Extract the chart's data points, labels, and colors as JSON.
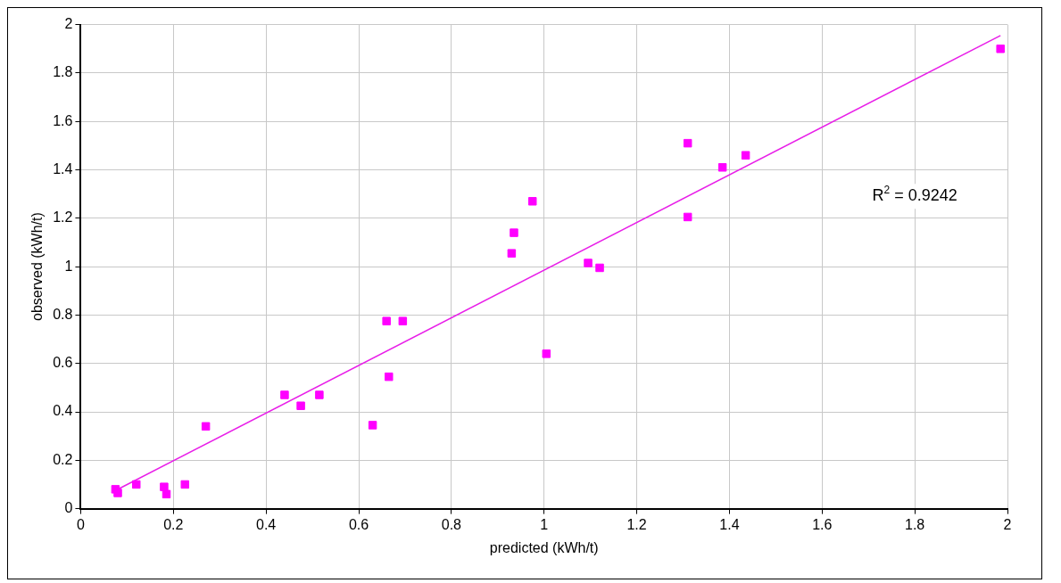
{
  "chart_data": {
    "type": "scatter",
    "xlabel": "predicted (kWh/t)",
    "ylabel": "observed (kWh/t)",
    "xlim": [
      0,
      2
    ],
    "xticks": [
      0,
      0.2,
      0.4,
      0.6,
      0.8,
      1,
      1.2,
      1.4,
      1.6,
      1.8,
      2
    ],
    "ylim": [
      0,
      2
    ],
    "yticks": [
      0,
      0.2,
      0.4,
      0.6,
      0.8,
      1,
      1.2,
      1.4,
      1.6,
      1.8,
      2
    ],
    "grid": true,
    "legend": false,
    "marker": "square",
    "annotations": [
      "R$^{2}$ = 0.9242"
    ],
    "series": [
      {
        "type": "scatter",
        "color": "#ff00ff",
        "x": [
          0.075,
          0.08,
          0.12,
          0.18,
          0.185,
          0.225,
          0.27,
          0.44,
          0.475,
          0.515,
          0.63,
          0.66,
          0.665,
          0.695,
          0.93,
          0.935,
          0.975,
          1.005,
          1.095,
          1.12,
          1.31,
          1.31,
          1.385,
          1.435,
          1.985
        ],
        "values": [
          0.08,
          0.065,
          0.1,
          0.09,
          0.06,
          0.1,
          0.34,
          0.47,
          0.425,
          0.47,
          0.345,
          0.775,
          0.545,
          0.775,
          1.055,
          1.14,
          1.27,
          0.64,
          1.015,
          0.995,
          1.51,
          1.205,
          1.41,
          1.46,
          1.9
        ]
      },
      {
        "type": "line",
        "color": "#e81ee8",
        "marker": "none",
        "x": [
          0.075,
          1.985
        ],
        "values": [
          0.075,
          1.955
        ]
      }
    ]
  }
}
